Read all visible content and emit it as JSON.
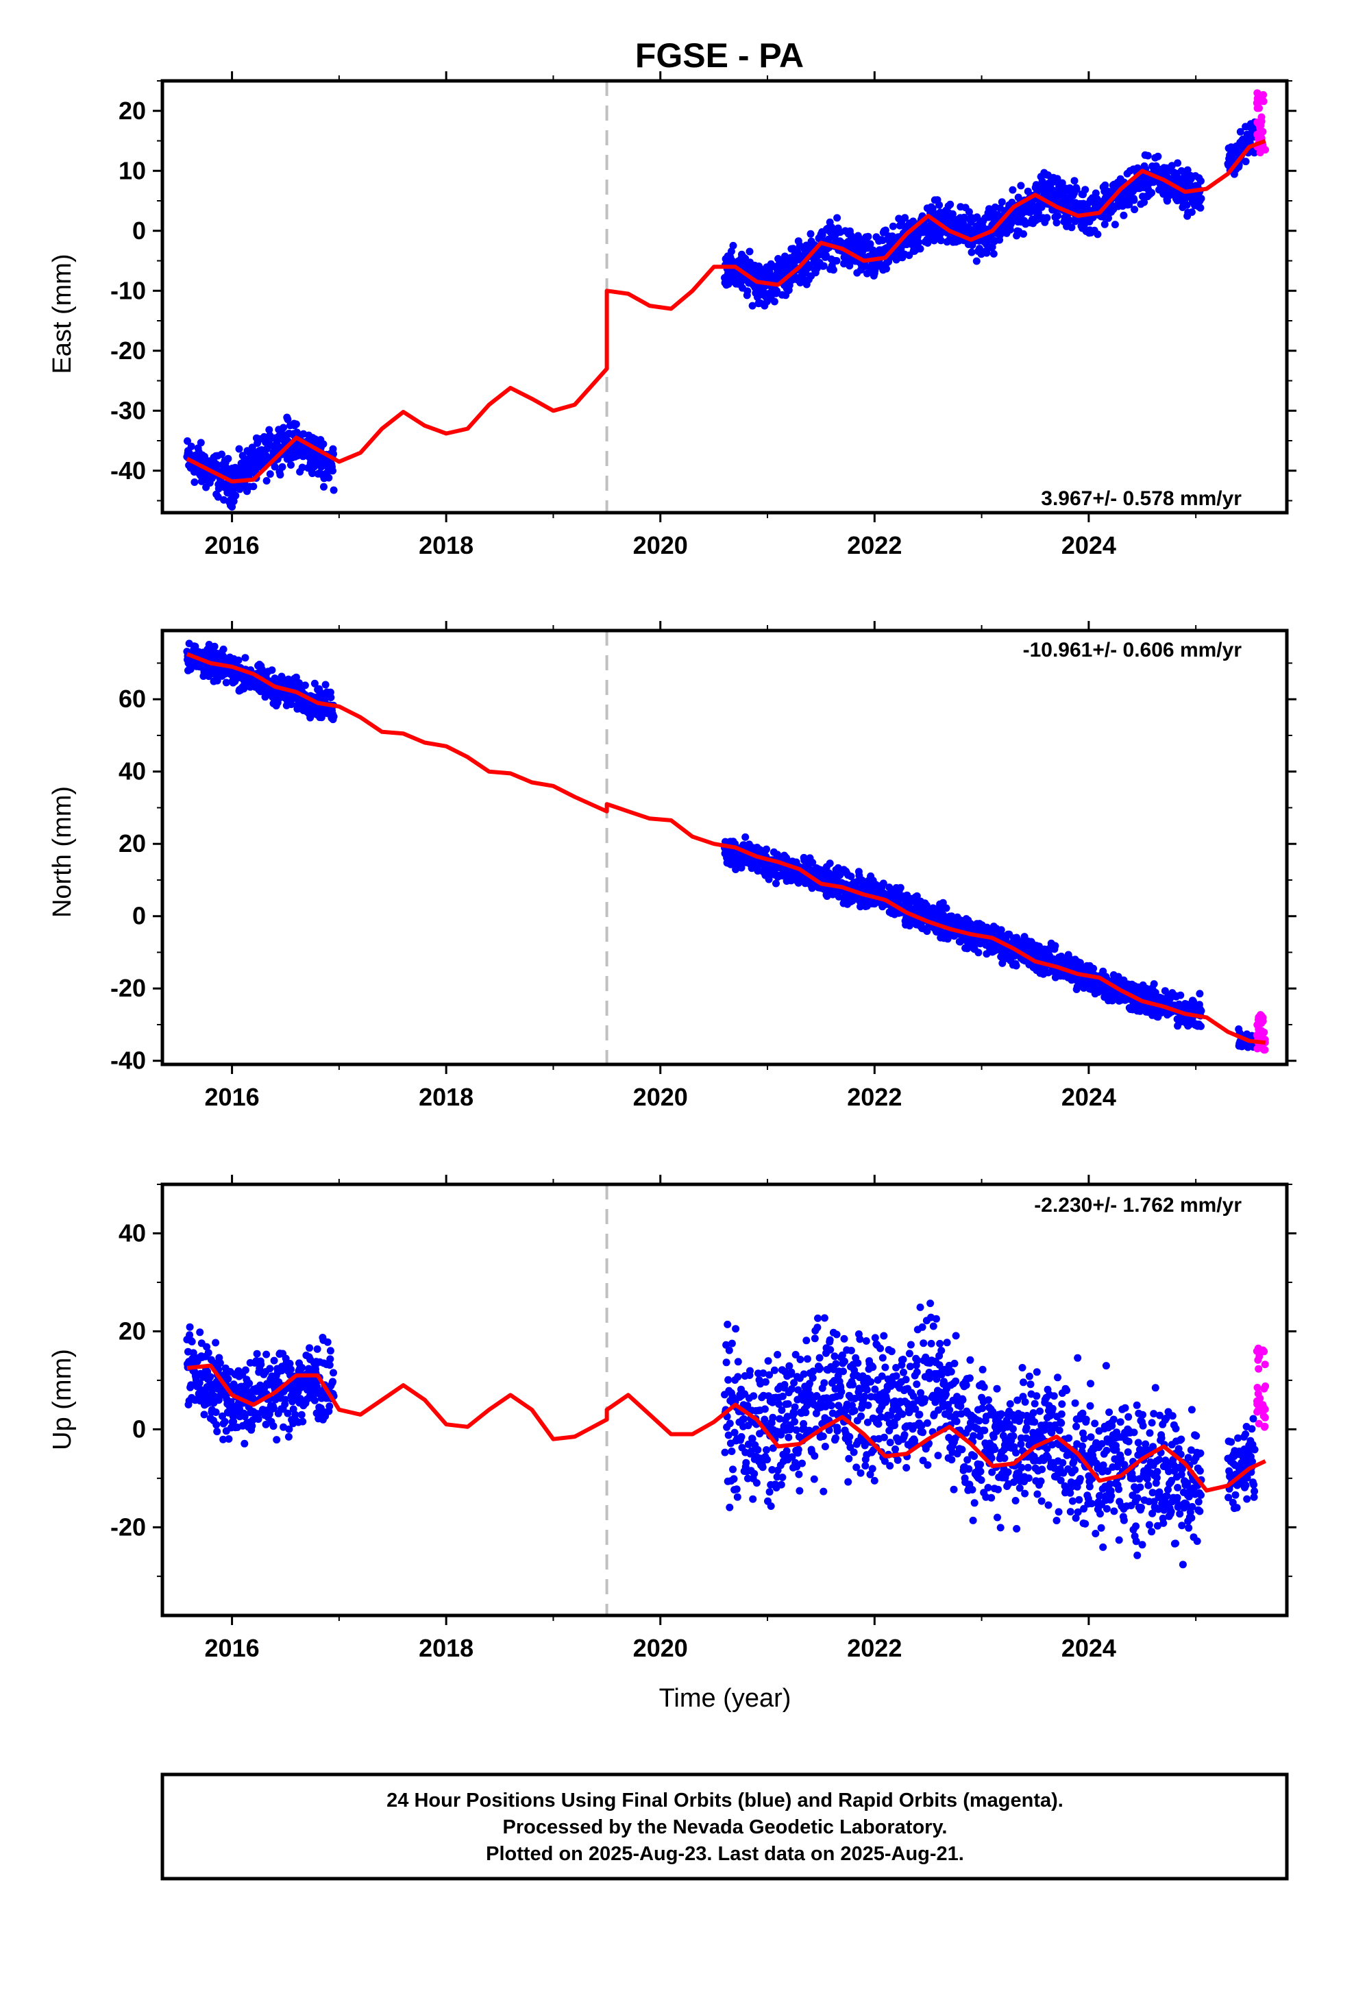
{
  "title": "FGSE - PA",
  "xlabel": "Time (year)",
  "x_ticks": [
    "2016",
    "2018",
    "2020",
    "2022",
    "2024"
  ],
  "footer": {
    "line1": "24 Hour Positions Using Final Orbits (blue) and Rapid Orbits (magenta).",
    "line2": "Processed by the Nevada Geodetic Laboratory.",
    "line3": "Plotted on 2025-Aug-23. Last data on 2025-Aug-21."
  },
  "colors": {
    "final": "#0000ff",
    "rapid": "#ff00ff",
    "model": "#ff0000",
    "break": "#c0c0c0",
    "frame": "#000000"
  },
  "chart_data": [
    {
      "type": "scatter",
      "component": "east",
      "ylabel": "East (mm)",
      "rate": "3.967+/- 0.578 mm/yr",
      "xlim": [
        2015.35,
        2025.85
      ],
      "ylim": [
        -47,
        25
      ],
      "y_ticks": [
        "20",
        "10",
        "0",
        "-10",
        "-20",
        "-30",
        "-40"
      ],
      "y_tick_values": [
        20,
        10,
        0,
        -10,
        -20,
        -30,
        -40
      ],
      "equipment_change": 2019.5,
      "final_segments": [
        {
          "x": [
            2015.58,
            2016.0,
            2016.5,
            2016.95
          ],
          "y": [
            -38,
            -42,
            -35,
            -39
          ],
          "spread": 2.5
        },
        {
          "x": [
            2020.6,
            2021.0,
            2021.6,
            2022.0,
            2022.6,
            2023.0,
            2023.6,
            2024.0,
            2024.6,
            2025.05
          ],
          "y": [
            -6,
            -9,
            -2,
            -5,
            2,
            -1,
            6,
            3,
            9,
            6
          ],
          "spread": 2.5
        },
        {
          "x": [
            2025.3,
            2025.55
          ],
          "y": [
            11,
            16
          ],
          "spread": 2
        }
      ],
      "rapid": {
        "x": [
          2025.57,
          2025.65
        ],
        "y": [
          13,
          23
        ]
      },
      "model": {
        "x": [
          2015.58,
          2015.8,
          2016.0,
          2016.2,
          2016.4,
          2016.6,
          2016.8,
          2017.0,
          2017.2,
          2017.4,
          2017.6,
          2017.8,
          2018.0,
          2018.2,
          2018.4,
          2018.6,
          2018.8,
          2019.0,
          2019.2,
          2019.5,
          2019.5,
          2019.7,
          2019.9,
          2020.1,
          2020.3,
          2020.5,
          2020.7,
          2020.9,
          2021.1,
          2021.3,
          2021.5,
          2021.7,
          2021.9,
          2022.1,
          2022.3,
          2022.5,
          2022.7,
          2022.9,
          2023.1,
          2023.3,
          2023.5,
          2023.7,
          2023.9,
          2024.1,
          2024.3,
          2024.5,
          2024.7,
          2024.9,
          2025.1,
          2025.3,
          2025.5,
          2025.65
        ],
        "y": [
          -38,
          -40,
          -41.8,
          -41.5,
          -38,
          -34.5,
          -36.5,
          -38.5,
          -37,
          -33,
          -30.2,
          -32.5,
          -33.8,
          -33,
          -29,
          -26.2,
          -28,
          -30,
          -29,
          -23,
          -10,
          -10.5,
          -12.5,
          -13,
          -10,
          -6,
          -6,
          -8.5,
          -9,
          -6,
          -2,
          -3,
          -5,
          -4.5,
          -0.5,
          2.5,
          0,
          -1.5,
          0,
          4,
          6,
          4,
          2.5,
          3,
          7,
          10,
          8.5,
          6.5,
          7,
          9.5,
          14,
          15
        ]
      }
    },
    {
      "type": "scatter",
      "component": "north",
      "ylabel": "North (mm)",
      "rate": "-10.961+/- 0.606 mm/yr",
      "xlim": [
        2015.35,
        2025.85
      ],
      "ylim": [
        -41,
        79
      ],
      "y_ticks": [
        "60",
        "40",
        "20",
        "0",
        "-20",
        "-40"
      ],
      "y_tick_values": [
        60,
        40,
        20,
        0,
        -20,
        -40
      ],
      "equipment_change": 2019.5,
      "final_segments": [
        {
          "x": [
            2015.58,
            2016.0,
            2016.5,
            2016.95
          ],
          "y": [
            72,
            68,
            62,
            58
          ],
          "spread": 3
        },
        {
          "x": [
            2020.6,
            2021.0,
            2021.6,
            2022.0,
            2022.6,
            2023.0,
            2023.6,
            2024.0,
            2024.6,
            2025.05
          ],
          "y": [
            18,
            15,
            9,
            6,
            -1,
            -6,
            -12,
            -17,
            -24,
            -27
          ],
          "spread": 3
        },
        {
          "x": [
            2025.4,
            2025.55
          ],
          "y": [
            -34,
            -35
          ],
          "spread": 1.5
        }
      ],
      "rapid": {
        "x": [
          2025.57,
          2025.65
        ],
        "y": [
          -37,
          -27
        ]
      },
      "model": {
        "x": [
          2015.58,
          2015.8,
          2016.0,
          2016.2,
          2016.4,
          2016.6,
          2016.8,
          2017.0,
          2017.2,
          2017.4,
          2017.6,
          2017.8,
          2018.0,
          2018.2,
          2018.4,
          2018.6,
          2018.8,
          2019.0,
          2019.2,
          2019.5,
          2019.5,
          2019.7,
          2019.9,
          2020.1,
          2020.3,
          2020.5,
          2020.7,
          2020.9,
          2021.1,
          2021.3,
          2021.5,
          2021.7,
          2021.9,
          2022.1,
          2022.3,
          2022.5,
          2022.7,
          2022.9,
          2023.1,
          2023.3,
          2023.5,
          2023.7,
          2023.9,
          2024.1,
          2024.3,
          2024.5,
          2024.7,
          2024.9,
          2025.1,
          2025.3,
          2025.5,
          2025.65
        ],
        "y": [
          72.5,
          70,
          69,
          67,
          63.5,
          62,
          59,
          58,
          55,
          51,
          50.5,
          48,
          47,
          44,
          40,
          39.5,
          37,
          36,
          33,
          29,
          31,
          29,
          27,
          26.5,
          22,
          20,
          19,
          16.5,
          15,
          13,
          9,
          8,
          6,
          4.5,
          1,
          -1.5,
          -3.5,
          -5,
          -6,
          -9,
          -12.5,
          -14,
          -16,
          -17,
          -20.5,
          -23.5,
          -25,
          -27,
          -28,
          -32,
          -34.5,
          -35
        ]
      }
    },
    {
      "type": "scatter",
      "component": "up",
      "ylabel": "Up (mm)",
      "rate": "-2.230+/- 1.762 mm/yr",
      "xlim": [
        2015.35,
        2025.85
      ],
      "ylim": [
        -38,
        50
      ],
      "y_ticks": [
        "40",
        "20",
        "0",
        "-20"
      ],
      "y_tick_values": [
        40,
        20,
        0,
        -20
      ],
      "equipment_change": 2019.5,
      "final_segments": [
        {
          "x": [
            2015.58,
            2016.0,
            2016.5,
            2016.95
          ],
          "y": [
            13,
            6,
            8,
            10
          ],
          "spread": 6
        },
        {
          "x": [
            2020.6,
            2021.0,
            2021.6,
            2022.0,
            2022.6,
            2023.0,
            2023.6,
            2024.0,
            2024.6,
            2025.05
          ],
          "y": [
            3,
            -2,
            8,
            4,
            8,
            -3,
            -2,
            -7,
            -8,
            -11
          ],
          "spread": 10
        },
        {
          "x": [
            2025.3,
            2025.55
          ],
          "y": [
            -9,
            -6
          ],
          "spread": 5
        }
      ],
      "rapid": {
        "x": [
          2025.57,
          2025.65
        ],
        "y": [
          0,
          17
        ]
      },
      "model": {
        "x": [
          2015.58,
          2015.8,
          2016.0,
          2016.2,
          2016.4,
          2016.6,
          2016.8,
          2017.0,
          2017.2,
          2017.4,
          2017.6,
          2017.8,
          2018.0,
          2018.2,
          2018.4,
          2018.6,
          2018.8,
          2019.0,
          2019.2,
          2019.5,
          2019.5,
          2019.7,
          2019.9,
          2020.1,
          2020.3,
          2020.5,
          2020.7,
          2020.9,
          2021.1,
          2021.3,
          2021.5,
          2021.7,
          2021.9,
          2022.1,
          2022.3,
          2022.5,
          2022.7,
          2022.9,
          2023.1,
          2023.3,
          2023.5,
          2023.7,
          2023.9,
          2024.1,
          2024.3,
          2024.5,
          2024.7,
          2024.9,
          2025.1,
          2025.3,
          2025.5,
          2025.65
        ],
        "y": [
          12.5,
          13,
          7,
          5,
          7.5,
          11,
          11,
          4,
          3,
          6,
          9,
          6,
          1,
          0.5,
          4,
          7,
          4,
          -2,
          -1.5,
          2,
          4,
          7,
          3,
          -1,
          -1,
          1.5,
          5,
          2,
          -3.5,
          -3,
          0,
          2.5,
          -1,
          -5.5,
          -5,
          -2,
          0.5,
          -3,
          -7.5,
          -7,
          -3.5,
          -1.5,
          -5,
          -10.5,
          -9.5,
          -6,
          -3.5,
          -7,
          -12.5,
          -11.5,
          -8,
          -6.5
        ]
      }
    }
  ]
}
